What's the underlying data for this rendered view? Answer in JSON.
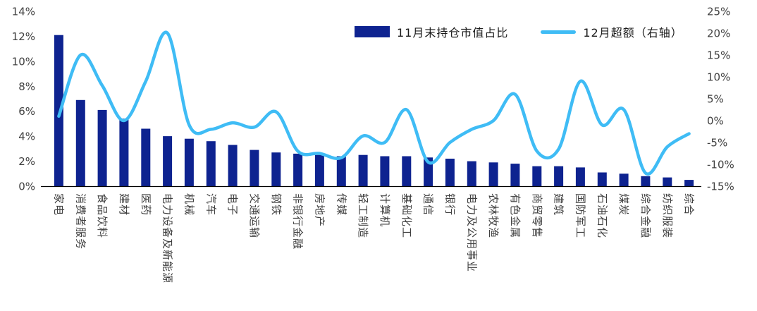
{
  "chart_data": {
    "type": "bar",
    "subtype": "combo-bar-line",
    "title": "",
    "categories": [
      "家电",
      "消费者服务",
      "食品饮料",
      "建材",
      "医药",
      "电力设备及新能源",
      "机械",
      "汽车",
      "电子",
      "交通运输",
      "钢铁",
      "非银行金融",
      "房地产",
      "传媒",
      "轻工制造",
      "计算机",
      "基础化工",
      "通信",
      "银行",
      "电力及公用事业",
      "农林牧渔",
      "有色金属",
      "商贸零售",
      "建筑",
      "国防军工",
      "石油石化",
      "煤炭",
      "综合金融",
      "纺织服装",
      "综合"
    ],
    "series": [
      {
        "name": "11月末持仓市值占比",
        "type": "bar",
        "axis": "left",
        "color": "#0e2390",
        "values": [
          12.1,
          6.9,
          6.1,
          5.4,
          4.6,
          4.0,
          3.8,
          3.6,
          3.3,
          2.9,
          2.7,
          2.6,
          2.5,
          2.4,
          2.5,
          2.4,
          2.4,
          2.3,
          2.2,
          2.0,
          1.9,
          1.8,
          1.6,
          1.6,
          1.5,
          1.1,
          1.0,
          0.8,
          0.7,
          0.5
        ]
      },
      {
        "name": "12月超额（右轴）",
        "type": "line",
        "axis": "right",
        "color": "#3fbcf5",
        "values": [
          1,
          15,
          8,
          0,
          9,
          20,
          -1,
          -2,
          -0.5,
          -1.5,
          2,
          -7,
          -7.5,
          -8.5,
          -3.5,
          -5,
          2.5,
          -9.5,
          -5,
          -2,
          0,
          6,
          -7,
          -6.5,
          9,
          -1,
          2.5,
          -12,
          -6,
          -3
        ]
      }
    ],
    "left_axis": {
      "min": 0,
      "max": 14,
      "tick_values": [
        0,
        2,
        4,
        6,
        8,
        10,
        12,
        14
      ],
      "tick_labels": [
        "0%",
        "2%",
        "4%",
        "6%",
        "8%",
        "10%",
        "12%",
        "14%"
      ]
    },
    "right_axis": {
      "min": -15,
      "max": 25,
      "tick_values": [
        -15,
        -10,
        -5,
        0,
        5,
        10,
        15,
        20,
        25
      ],
      "tick_labels": [
        "-15%",
        "-10%",
        "-5%",
        "0%",
        "5%",
        "10%",
        "15%",
        "20%",
        "25%"
      ]
    },
    "legend_position": "top",
    "grid": false,
    "axis_text_color": "#404040",
    "axis_line_color": "#000000"
  }
}
